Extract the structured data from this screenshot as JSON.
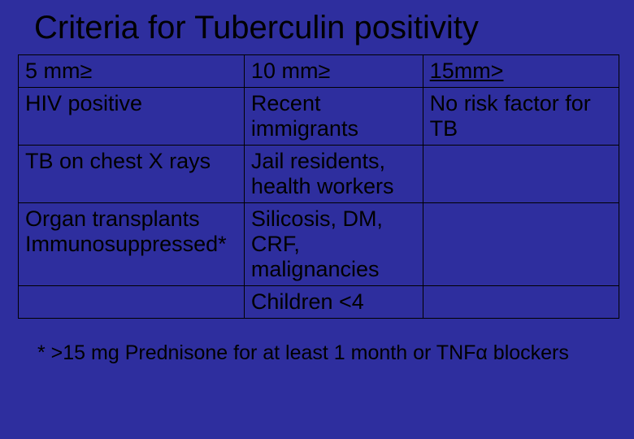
{
  "title": "Criteria for Tuberculin positivity",
  "table": {
    "headers": {
      "c1": " 5  mm≥",
      "c2": " 10  mm≥",
      "c3": " 15mm>"
    },
    "rows": [
      {
        "c1": "HIV positive",
        "c2": "Recent immigrants",
        "c3": "No risk factor for TB"
      },
      {
        "c1": "TB on chest X rays",
        "c2": "Jail residents, health workers",
        "c3": ""
      },
      {
        "c1": "Organ transplants Immunosuppressed*",
        "c2": "Silicosis, DM, CRF, malignancies",
        "c3": ""
      },
      {
        "c1": "",
        "c2": "Children <4",
        "c3": ""
      }
    ]
  },
  "footnote": "* >15 mg Prednisone for at least 1 month or TNFα blockers",
  "colors": {
    "background": "#2e2e9e",
    "text": "#000000",
    "border": "#000000"
  }
}
